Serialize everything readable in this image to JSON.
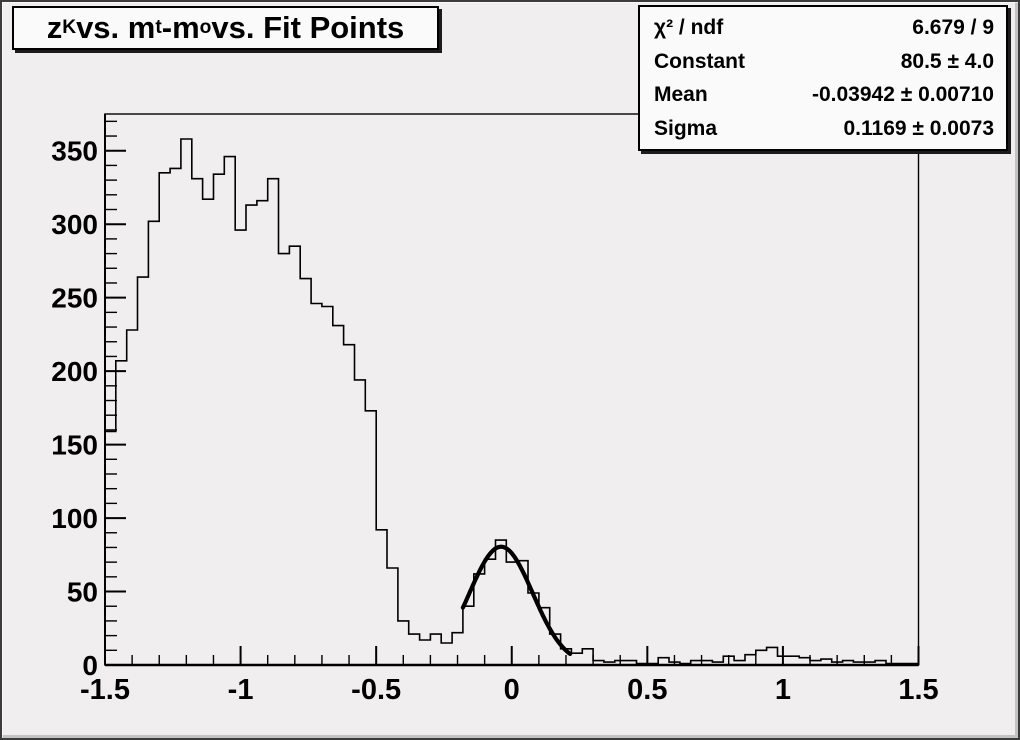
{
  "colors": {
    "canvas_bg": "#f0eeee",
    "box_bg": "#fbfafa",
    "line": "#000000",
    "shadow": "#1c1c1c",
    "text": "#000000"
  },
  "title": {
    "parts": [
      {
        "text": "z"
      },
      {
        "text": "K",
        "sub": true
      },
      {
        "text": " vs. m"
      },
      {
        "text": "t",
        "sub": true
      },
      {
        "text": "-m"
      },
      {
        "text": "o",
        "sub": true
      },
      {
        "text": " vs. Fit Points"
      }
    ]
  },
  "stats": {
    "rows": [
      {
        "label": "χ² / ndf",
        "value": "6.679 / 9"
      },
      {
        "label": "Constant",
        "value": "80.5 ± 4.0"
      },
      {
        "label": "Mean",
        "value": "-0.03942 ± 0.00710"
      },
      {
        "label": "Sigma",
        "value": "0.1169 ± 0.0073"
      }
    ]
  },
  "chart_data": {
    "type": "bar",
    "title": "z_K vs. m_t-m_o vs. Fit Points",
    "xlabel": "",
    "ylabel": "",
    "xlim": [
      -1.5,
      1.5
    ],
    "ylim": [
      0,
      375
    ],
    "grid": false,
    "legend_position": "top-right-stats-box",
    "bin_start": -1.5,
    "bin_width": 0.04,
    "n_bins": 75,
    "values": [
      159,
      207,
      228,
      264,
      302,
      335,
      338,
      358,
      331,
      317,
      334,
      346,
      296,
      313,
      316,
      331,
      280,
      285,
      263,
      246,
      244,
      231,
      218,
      194,
      173,
      92,
      66,
      30,
      21,
      17,
      21,
      15,
      22,
      40,
      62,
      72,
      85,
      70,
      71,
      49,
      39,
      21,
      11,
      8,
      11,
      3,
      2,
      3,
      3,
      1,
      1,
      5,
      2,
      1,
      3,
      3,
      2,
      6,
      3,
      7,
      10,
      12,
      6,
      6,
      5,
      3,
      4,
      2,
      3,
      2,
      2,
      3,
      1,
      1,
      1
    ],
    "x_major_ticks": [
      -1.5,
      -1,
      -0.5,
      0,
      0.5,
      1,
      1.5
    ],
    "x_tick_labels": [
      "-1.5",
      "-1",
      "-0.5",
      "0",
      "0.5",
      "1",
      "1.5"
    ],
    "x_minor_step": 0.1,
    "y_major_ticks": [
      0,
      50,
      100,
      150,
      200,
      250,
      300,
      350
    ],
    "y_tick_labels": [
      "0",
      "50",
      "100",
      "150",
      "200",
      "250",
      "300",
      "350"
    ],
    "y_minor_step": 10,
    "fit": {
      "type": "gaussian",
      "constant": 80.5,
      "mean": -0.03942,
      "sigma": 0.1169,
      "draw_range": [
        -0.18,
        0.215
      ]
    }
  }
}
